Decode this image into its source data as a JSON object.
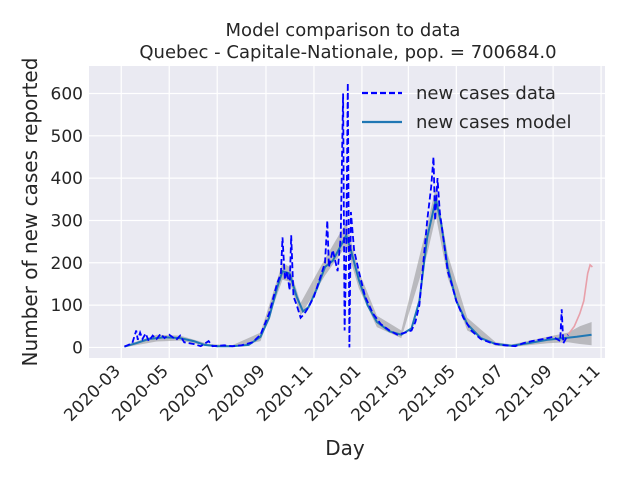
{
  "chart_data": {
    "type": "line",
    "title": "Model comparison to data",
    "subtitle": "Quebec - Capitale-Nationale, pop. = 700684.0",
    "xlabel": "Day",
    "ylabel": "Number of new cases reported",
    "x_range": [
      "2020-01-20",
      "2021-11-06"
    ],
    "ylim": [
      -25,
      665
    ],
    "y_ticks": [
      0,
      100,
      200,
      300,
      400,
      500,
      600
    ],
    "x_ticks": [
      "2020-03",
      "2020-05",
      "2020-07",
      "2020-09",
      "2020-11",
      "2021-01",
      "2021-03",
      "2021-05",
      "2021-07",
      "2021-09",
      "2021-11"
    ],
    "grid": true,
    "background": "#eaeaf2",
    "legend": {
      "placement": "top-right",
      "entries": [
        "new cases data",
        "new cases model"
      ]
    },
    "series": [
      {
        "name": "new cases data",
        "style": "dashed",
        "color": "#0000ff",
        "points": [
          [
            "2020-03-05",
            2
          ],
          [
            "2020-03-15",
            10
          ],
          [
            "2020-03-20",
            40
          ],
          [
            "2020-03-22",
            18
          ],
          [
            "2020-03-25",
            35
          ],
          [
            "2020-03-28",
            20
          ],
          [
            "2020-04-01",
            33
          ],
          [
            "2020-04-05",
            15
          ],
          [
            "2020-04-10",
            28
          ],
          [
            "2020-04-15",
            20
          ],
          [
            "2020-04-20",
            32
          ],
          [
            "2020-04-25",
            22
          ],
          [
            "2020-05-01",
            30
          ],
          [
            "2020-05-10",
            18
          ],
          [
            "2020-05-15",
            28
          ],
          [
            "2020-05-20",
            12
          ],
          [
            "2020-06-01",
            8
          ],
          [
            "2020-06-10",
            3
          ],
          [
            "2020-06-20",
            15
          ],
          [
            "2020-06-25",
            3
          ],
          [
            "2020-07-10",
            5
          ],
          [
            "2020-07-20",
            3
          ],
          [
            "2020-08-01",
            5
          ],
          [
            "2020-08-15",
            12
          ],
          [
            "2020-08-25",
            30
          ],
          [
            "2020-09-05",
            80
          ],
          [
            "2020-09-15",
            150
          ],
          [
            "2020-09-20",
            175
          ],
          [
            "2020-09-22",
            260
          ],
          [
            "2020-09-25",
            160
          ],
          [
            "2020-09-28",
            180
          ],
          [
            "2020-10-01",
            135
          ],
          [
            "2020-10-03",
            265
          ],
          [
            "2020-10-06",
            120
          ],
          [
            "2020-10-10",
            100
          ],
          [
            "2020-10-15",
            70
          ],
          [
            "2020-10-20",
            80
          ],
          [
            "2020-10-25",
            95
          ],
          [
            "2020-11-01",
            120
          ],
          [
            "2020-11-08",
            160
          ],
          [
            "2020-11-15",
            200
          ],
          [
            "2020-11-18",
            300
          ],
          [
            "2020-11-20",
            190
          ],
          [
            "2020-11-25",
            230
          ],
          [
            "2020-12-01",
            180
          ],
          [
            "2020-12-05",
            260
          ],
          [
            "2020-12-08",
            600
          ],
          [
            "2020-12-10",
            40
          ],
          [
            "2020-12-12",
            220
          ],
          [
            "2020-12-14",
            625
          ],
          [
            "2020-12-16",
            0
          ],
          [
            "2020-12-18",
            320
          ],
          [
            "2020-12-22",
            230
          ],
          [
            "2020-12-28",
            180
          ],
          [
            "2021-01-05",
            120
          ],
          [
            "2021-01-15",
            80
          ],
          [
            "2021-01-25",
            55
          ],
          [
            "2021-02-05",
            40
          ],
          [
            "2021-02-15",
            30
          ],
          [
            "2021-02-25",
            35
          ],
          [
            "2021-03-05",
            40
          ],
          [
            "2021-03-10",
            60
          ],
          [
            "2021-03-15",
            100
          ],
          [
            "2021-03-20",
            200
          ],
          [
            "2021-03-25",
            300
          ],
          [
            "2021-03-30",
            380
          ],
          [
            "2021-04-02",
            450
          ],
          [
            "2021-04-04",
            300
          ],
          [
            "2021-04-07",
            400
          ],
          [
            "2021-04-10",
            320
          ],
          [
            "2021-04-15",
            250
          ],
          [
            "2021-04-20",
            180
          ],
          [
            "2021-04-25",
            150
          ],
          [
            "2021-05-01",
            110
          ],
          [
            "2021-05-10",
            70
          ],
          [
            "2021-05-20",
            40
          ],
          [
            "2021-06-01",
            20
          ],
          [
            "2021-06-15",
            10
          ],
          [
            "2021-07-01",
            5
          ],
          [
            "2021-07-15",
            3
          ],
          [
            "2021-07-25",
            10
          ],
          [
            "2021-08-05",
            15
          ],
          [
            "2021-08-20",
            20
          ],
          [
            "2021-09-01",
            25
          ],
          [
            "2021-09-10",
            15
          ],
          [
            "2021-09-12",
            90
          ],
          [
            "2021-09-14",
            10
          ],
          [
            "2021-09-20",
            30
          ]
        ]
      },
      {
        "name": "new cases model",
        "style": "solid",
        "color": "#1f77b4",
        "points": [
          [
            "2020-03-05",
            2
          ],
          [
            "2020-03-20",
            10
          ],
          [
            "2020-04-05",
            20
          ],
          [
            "2020-04-25",
            24
          ],
          [
            "2020-05-15",
            22
          ],
          [
            "2020-06-01",
            15
          ],
          [
            "2020-06-15",
            6
          ],
          [
            "2020-07-01",
            3
          ],
          [
            "2020-07-20",
            3
          ],
          [
            "2020-08-10",
            6
          ],
          [
            "2020-08-25",
            25
          ],
          [
            "2020-09-05",
            70
          ],
          [
            "2020-09-15",
            140
          ],
          [
            "2020-09-22",
            180
          ],
          [
            "2020-10-01",
            175
          ],
          [
            "2020-10-10",
            120
          ],
          [
            "2020-10-18",
            85
          ],
          [
            "2020-10-25",
            95
          ],
          [
            "2020-11-05",
            140
          ],
          [
            "2020-11-15",
            190
          ],
          [
            "2020-11-25",
            205
          ],
          [
            "2020-12-05",
            240
          ],
          [
            "2020-12-12",
            265
          ],
          [
            "2020-12-18",
            230
          ],
          [
            "2020-12-28",
            160
          ],
          [
            "2021-01-08",
            100
          ],
          [
            "2021-01-20",
            60
          ],
          [
            "2021-02-05",
            38
          ],
          [
            "2021-02-20",
            30
          ],
          [
            "2021-03-05",
            45
          ],
          [
            "2021-03-15",
            110
          ],
          [
            "2021-03-25",
            260
          ],
          [
            "2021-04-05",
            350
          ],
          [
            "2021-04-12",
            290
          ],
          [
            "2021-04-20",
            190
          ],
          [
            "2021-05-01",
            110
          ],
          [
            "2021-05-15",
            55
          ],
          [
            "2021-06-01",
            22
          ],
          [
            "2021-06-20",
            8
          ],
          [
            "2021-07-10",
            4
          ],
          [
            "2021-08-01",
            10
          ],
          [
            "2021-08-25",
            18
          ],
          [
            "2021-09-15",
            22
          ],
          [
            "2021-10-01",
            25
          ],
          [
            "2021-10-20",
            30
          ]
        ]
      }
    ],
    "ensemble_band": {
      "color": "#7f7f7f",
      "upper": [
        [
          "2020-03-05",
          4
        ],
        [
          "2020-04-15",
          30
        ],
        [
          "2020-05-15",
          28
        ],
        [
          "2020-06-20",
          8
        ],
        [
          "2020-07-20",
          5
        ],
        [
          "2020-08-25",
          35
        ],
        [
          "2020-09-22",
          200
        ],
        [
          "2020-10-01",
          190
        ],
        [
          "2020-10-15",
          105
        ],
        [
          "2020-11-15",
          210
        ],
        [
          "2020-12-12",
          295
        ],
        [
          "2020-12-28",
          180
        ],
        [
          "2021-01-20",
          75
        ],
        [
          "2021-02-20",
          40
        ],
        [
          "2021-03-25",
          290
        ],
        [
          "2021-04-05",
          380
        ],
        [
          "2021-04-20",
          220
        ],
        [
          "2021-05-15",
          70
        ],
        [
          "2021-06-20",
          12
        ],
        [
          "2021-07-10",
          7
        ],
        [
          "2021-08-25",
          25
        ],
        [
          "2021-09-20",
          35
        ],
        [
          "2021-10-05",
          50
        ],
        [
          "2021-10-20",
          60
        ]
      ],
      "lower": [
        [
          "2020-03-05",
          0
        ],
        [
          "2020-04-15",
          14
        ],
        [
          "2020-05-15",
          16
        ],
        [
          "2020-06-20",
          3
        ],
        [
          "2020-07-20",
          1
        ],
        [
          "2020-08-25",
          15
        ],
        [
          "2020-09-22",
          160
        ],
        [
          "2020-10-01",
          155
        ],
        [
          "2020-10-15",
          75
        ],
        [
          "2020-11-15",
          170
        ],
        [
          "2020-12-12",
          240
        ],
        [
          "2020-12-28",
          140
        ],
        [
          "2021-01-20",
          48
        ],
        [
          "2021-02-20",
          22
        ],
        [
          "2021-03-25",
          220
        ],
        [
          "2021-04-05",
          310
        ],
        [
          "2021-04-20",
          165
        ],
        [
          "2021-05-15",
          40
        ],
        [
          "2021-06-20",
          4
        ],
        [
          "2021-07-10",
          1
        ],
        [
          "2021-08-25",
          10
        ],
        [
          "2021-09-20",
          12
        ],
        [
          "2021-10-05",
          8
        ],
        [
          "2021-10-20",
          5
        ]
      ]
    },
    "outlier_run": {
      "color": "#e8a0aa",
      "points": [
        [
          "2021-09-20",
          30
        ],
        [
          "2021-09-28",
          50
        ],
        [
          "2021-10-05",
          80
        ],
        [
          "2021-10-10",
          110
        ],
        [
          "2021-10-15",
          175
        ],
        [
          "2021-10-18",
          195
        ],
        [
          "2021-10-21",
          190
        ]
      ]
    }
  }
}
